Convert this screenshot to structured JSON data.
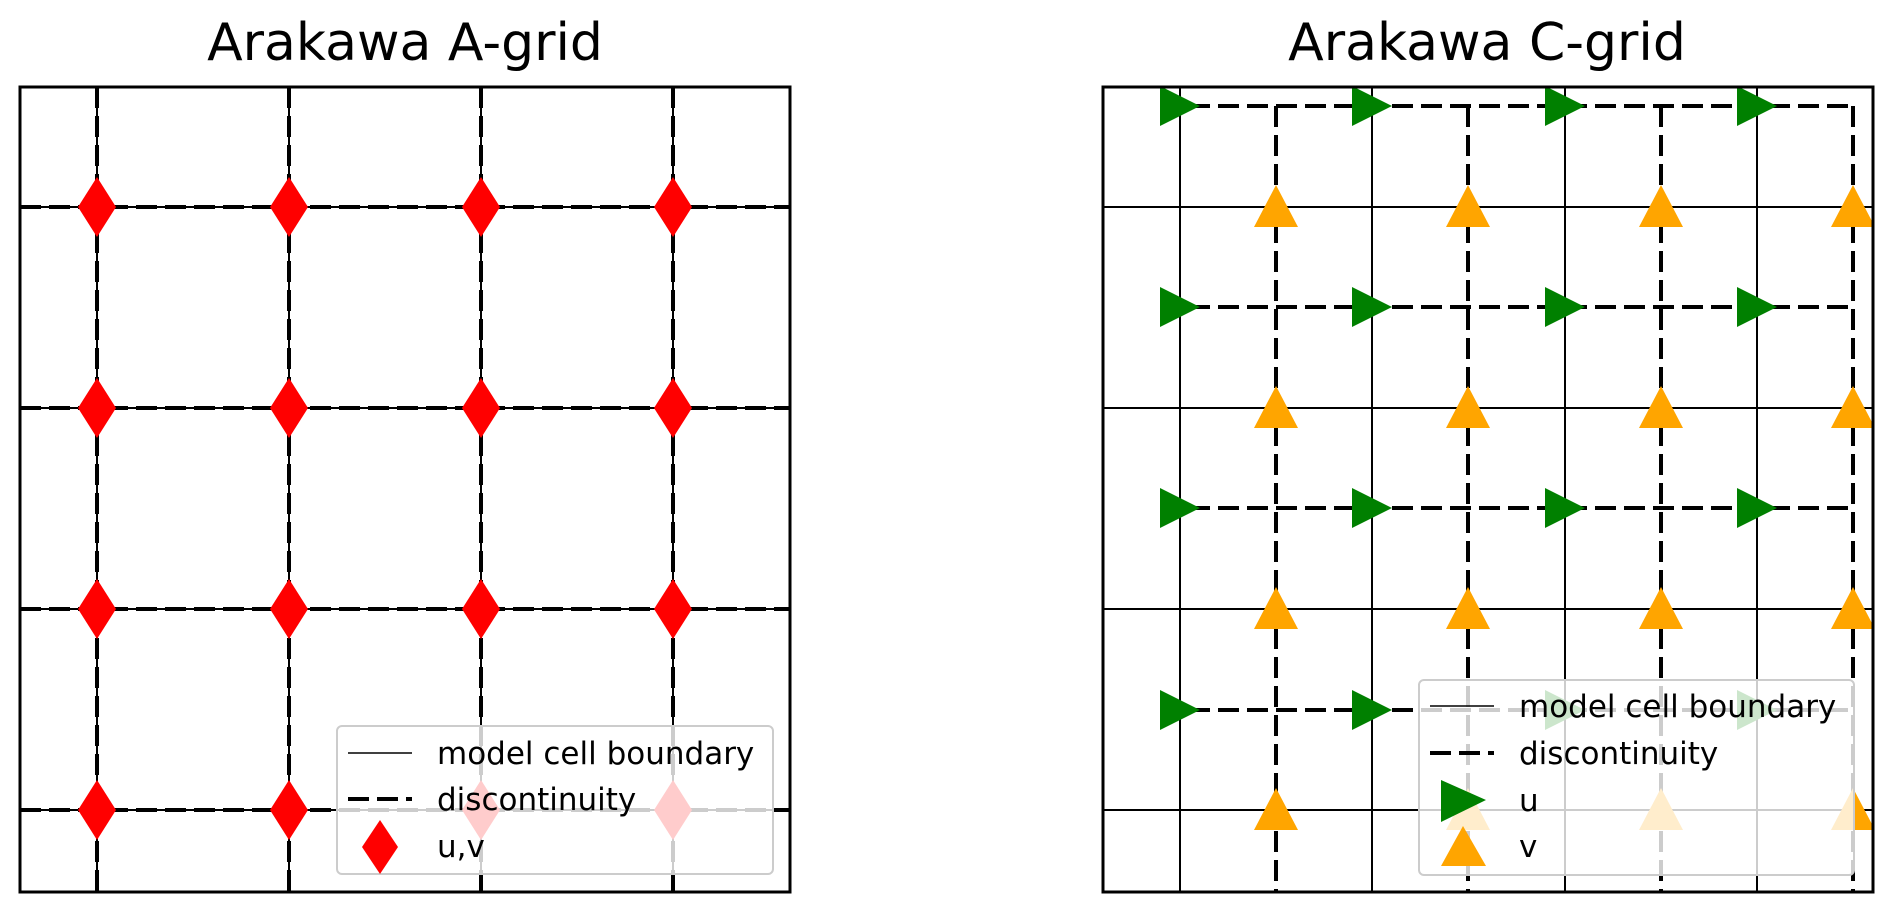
{
  "panels": [
    {
      "title": "Arakawa A-grid",
      "legend": [
        "model cell boundary",
        "discontinuity",
        "u,v"
      ],
      "marker_color": "#ff0000"
    },
    {
      "title": "Arakawa C-grid",
      "legend": [
        "model cell boundary",
        "discontinuity",
        "u",
        "v"
      ],
      "u_color": "#008000",
      "v_color": "#ffa500"
    }
  ],
  "colors": {
    "boundary": "#000000",
    "background": "#ffffff"
  }
}
